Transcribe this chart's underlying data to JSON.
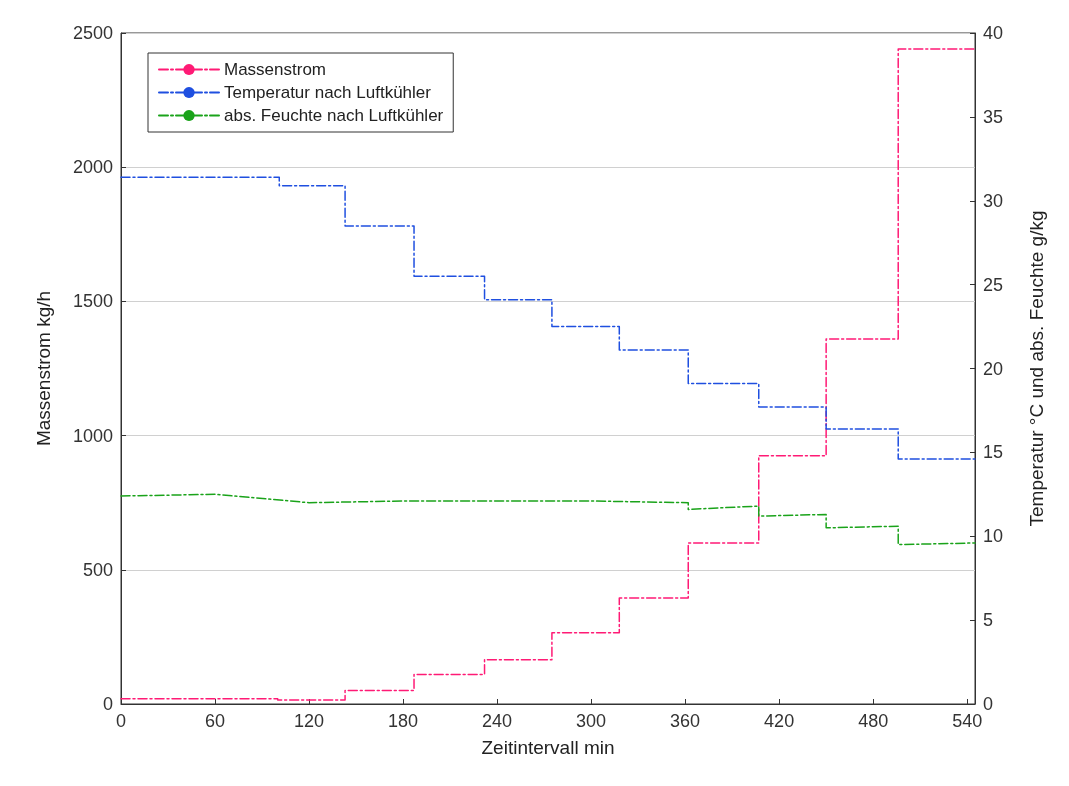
{
  "chart_data": {
    "type": "step",
    "xlabel": "Zeitintervall min",
    "ylabel": "Massenstrom kg/h",
    "y2label": "Temperatur °C und abs. Feuchte g/kg",
    "xlim": [
      0,
      545
    ],
    "xticks": [
      0,
      60,
      120,
      180,
      240,
      300,
      360,
      420,
      480,
      540
    ],
    "ylim": [
      0,
      2500
    ],
    "yticks": [
      0,
      500,
      1000,
      1500,
      2000,
      2500
    ],
    "y2lim": [
      0,
      40
    ],
    "y2ticks": [
      0,
      5,
      10,
      15,
      20,
      25,
      30,
      35,
      40
    ],
    "grid": "y",
    "legend": "top left",
    "line_style": "dashed",
    "marker": "none",
    "series": [
      {
        "name": "Massenstrom",
        "color": "#ff1a75",
        "x": [
          0,
          100,
          100,
          143,
          143,
          187,
          187,
          232,
          232,
          275,
          275,
          318,
          318,
          362,
          362,
          407,
          407,
          450,
          450,
          496,
          496,
          545
        ],
        "values": [
          20,
          20,
          15,
          15,
          50,
          50,
          110,
          110,
          165,
          165,
          265,
          265,
          395,
          395,
          600,
          600,
          925,
          925,
          1360,
          1360,
          2440,
          2440
        ]
      },
      {
        "name": "Temperatur nach Luftkühler",
        "color": "#1f4fe0",
        "axis": "y2",
        "x": [
          0,
          101,
          101,
          143,
          143,
          187,
          187,
          232,
          232,
          275,
          275,
          318,
          318,
          362,
          362,
          407,
          407,
          450,
          450,
          496,
          496,
          545
        ],
        "values": [
          31.4,
          31.4,
          30.9,
          30.9,
          28.5,
          28.5,
          25.5,
          25.5,
          24.1,
          24.1,
          22.5,
          22.5,
          21.1,
          21.1,
          19.1,
          19.1,
          17.7,
          17.7,
          16.4,
          16.4,
          14.6,
          14.6
        ]
      },
      {
        "name": "abs. Feuchte nach Luftkühler",
        "color": "#1aa31a",
        "axis": "y2",
        "x": [
          0,
          60,
          120,
          180,
          240,
          300,
          362,
          362,
          407,
          407,
          450,
          450,
          496,
          496,
          545
        ],
        "values": [
          12.4,
          12.5,
          12.0,
          12.1,
          12.1,
          12.1,
          12.0,
          11.6,
          11.8,
          11.2,
          11.3,
          10.5,
          10.6,
          9.5,
          9.6
        ]
      }
    ]
  }
}
